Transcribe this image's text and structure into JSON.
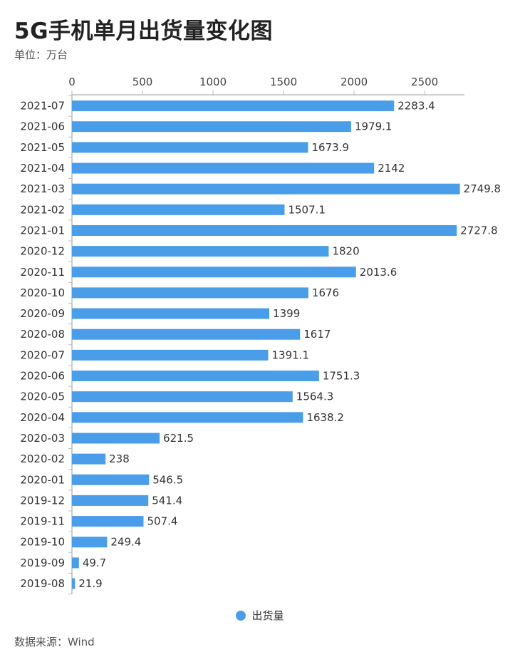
{
  "title": "5G手机单月出货量变化图",
  "unit_label": "单位：万台",
  "source": "数据来源：Wind",
  "colors": {
    "bar": "#4a9de8",
    "axis": "#bbbbbb"
  },
  "chart_data": {
    "type": "bar",
    "orientation": "horizontal",
    "title": "5G手机单月出货量变化图",
    "subtitle": "单位：万台",
    "xlim": [
      0,
      2800
    ],
    "x_ticks": [
      0,
      500,
      1000,
      1500,
      2000,
      2500
    ],
    "x_axis_position": "top",
    "grid": false,
    "legend": "bottom-center",
    "categories": [
      "2021-07",
      "2021-06",
      "2021-05",
      "2021-04",
      "2021-03",
      "2021-02",
      "2021-01",
      "2020-12",
      "2020-11",
      "2020-10",
      "2020-09",
      "2020-08",
      "2020-07",
      "2020-06",
      "2020-05",
      "2020-04",
      "2020-03",
      "2020-02",
      "2020-01",
      "2019-12",
      "2019-11",
      "2019-10",
      "2019-09",
      "2019-08"
    ],
    "series": [
      {
        "name": "出货量",
        "values": [
          2283.4,
          1979.1,
          1673.9,
          2142,
          2749.8,
          1507.1,
          2727.8,
          1820,
          2013.6,
          1676,
          1399,
          1617,
          1391.1,
          1751.3,
          1564.3,
          1638.2,
          621.5,
          238,
          546.5,
          541.4,
          507.4,
          249.4,
          49.7,
          21.9
        ]
      }
    ]
  }
}
